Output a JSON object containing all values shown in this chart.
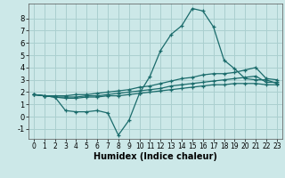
{
  "xlabel": "Humidex (Indice chaleur)",
  "xlim": [
    -0.5,
    23.5
  ],
  "ylim": [
    -1.8,
    9.2
  ],
  "yticks": [
    -1,
    0,
    1,
    2,
    3,
    4,
    5,
    6,
    7,
    8
  ],
  "xticks": [
    0,
    1,
    2,
    3,
    4,
    5,
    6,
    7,
    8,
    9,
    10,
    11,
    12,
    13,
    14,
    15,
    16,
    17,
    18,
    19,
    20,
    21,
    22,
    23
  ],
  "bg_color": "#cce8e8",
  "grid_color": "#aacfcf",
  "line_color": "#1a6b6b",
  "line1_x": [
    0,
    1,
    2,
    3,
    4,
    5,
    6,
    7,
    8,
    9,
    10,
    11,
    12,
    13,
    14,
    15,
    16,
    17,
    18,
    19,
    20,
    21,
    22,
    23
  ],
  "line1_y": [
    1.8,
    1.7,
    1.6,
    0.5,
    0.4,
    0.4,
    0.5,
    0.3,
    -1.5,
    -0.3,
    1.9,
    3.3,
    5.4,
    6.7,
    7.4,
    8.8,
    8.6,
    7.3,
    4.6,
    3.9,
    3.1,
    3.0,
    3.0,
    2.7
  ],
  "line2_x": [
    0,
    1,
    2,
    3,
    4,
    5,
    6,
    7,
    8,
    9,
    10,
    11,
    12,
    13,
    14,
    15,
    16,
    17,
    18,
    19,
    20,
    21,
    22,
    23
  ],
  "line2_y": [
    1.8,
    1.7,
    1.7,
    1.7,
    1.8,
    1.8,
    1.9,
    2.0,
    2.1,
    2.2,
    2.4,
    2.5,
    2.7,
    2.9,
    3.1,
    3.2,
    3.4,
    3.5,
    3.5,
    3.6,
    3.8,
    4.0,
    3.1,
    3.0
  ],
  "line3_x": [
    0,
    1,
    2,
    3,
    4,
    5,
    6,
    7,
    8,
    9,
    10,
    11,
    12,
    13,
    14,
    15,
    16,
    17,
    18,
    19,
    20,
    21,
    22,
    23
  ],
  "line3_y": [
    1.8,
    1.7,
    1.6,
    1.6,
    1.6,
    1.7,
    1.7,
    1.8,
    1.9,
    2.0,
    2.1,
    2.2,
    2.3,
    2.5,
    2.6,
    2.7,
    2.8,
    2.9,
    3.0,
    3.1,
    3.2,
    3.3,
    2.8,
    2.8
  ],
  "line4_x": [
    0,
    1,
    2,
    3,
    4,
    5,
    6,
    7,
    8,
    9,
    10,
    11,
    12,
    13,
    14,
    15,
    16,
    17,
    18,
    19,
    20,
    21,
    22,
    23
  ],
  "line4_y": [
    1.8,
    1.7,
    1.6,
    1.5,
    1.5,
    1.6,
    1.6,
    1.7,
    1.7,
    1.8,
    1.9,
    2.0,
    2.1,
    2.2,
    2.3,
    2.4,
    2.5,
    2.6,
    2.6,
    2.7,
    2.7,
    2.7,
    2.6,
    2.6
  ]
}
